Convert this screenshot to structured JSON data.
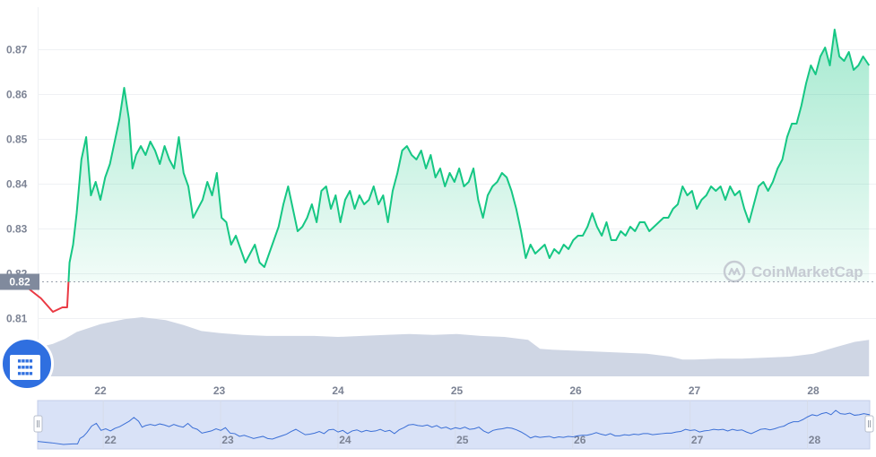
{
  "chart_data": {
    "type": "line",
    "watermark": "CoinMarketCap",
    "ylim": [
      0.8075,
      0.8795
    ],
    "y_ticks": [
      "0.87",
      "0.86",
      "0.85",
      "0.84",
      "0.83",
      "0.82",
      "0.81"
    ],
    "x_ticks": [
      "22",
      "23",
      "24",
      "25",
      "26",
      "27",
      "28"
    ],
    "reference_price": "0.82",
    "reference_value": 0.8182,
    "colors": {
      "up": "#16c784",
      "down": "#ea3943",
      "volume": "#cfd6e4",
      "navigator": "#3b6fd6"
    },
    "series": [
      {
        "x": [
          21.38,
          21.5,
          21.6,
          21.68,
          21.72,
          21.74,
          21.77,
          21.8,
          21.84,
          21.88,
          21.92,
          21.96,
          22.0,
          22.04,
          22.08,
          22.12,
          22.16,
          22.2,
          22.24,
          22.27,
          22.3,
          22.34,
          22.38,
          22.42,
          22.46,
          22.5,
          22.54,
          22.58,
          22.62,
          22.66,
          22.7,
          22.74,
          22.78,
          22.82,
          22.86,
          22.9,
          22.94,
          22.98,
          23.02,
          23.06,
          23.1,
          23.14,
          23.18,
          23.22,
          23.26,
          23.3,
          23.34,
          23.38,
          23.42,
          23.46,
          23.5,
          23.54,
          23.58,
          23.62,
          23.66,
          23.7,
          23.74,
          23.78,
          23.82,
          23.86,
          23.9,
          23.94,
          23.98,
          24.02,
          24.06,
          24.1,
          24.14,
          24.18,
          24.22,
          24.26,
          24.3,
          24.34,
          24.38,
          24.42,
          24.46,
          24.5,
          24.54,
          24.58,
          24.62,
          24.66,
          24.7,
          24.74,
          24.78,
          24.82,
          24.86,
          24.9,
          24.94,
          24.98,
          25.02,
          25.06,
          25.1,
          25.14,
          25.18,
          25.22,
          25.26,
          25.3,
          25.34,
          25.38,
          25.42,
          25.46,
          25.5,
          25.54,
          25.58,
          25.62,
          25.66,
          25.7,
          25.74,
          25.78,
          25.82,
          25.86,
          25.9,
          25.94,
          25.98,
          26.02,
          26.06,
          26.1,
          26.14,
          26.18,
          26.22,
          26.26,
          26.3,
          26.34,
          26.38,
          26.42,
          26.46,
          26.5,
          26.54,
          26.58,
          26.62,
          26.66,
          26.7,
          26.74,
          26.78,
          26.82,
          26.86,
          26.9,
          26.94,
          26.98,
          27.02,
          27.06,
          27.1,
          27.14,
          27.18,
          27.22,
          27.26,
          27.3,
          27.34,
          27.38,
          27.42,
          27.46,
          27.5,
          27.54,
          27.58,
          27.62,
          27.66,
          27.7,
          27.74,
          27.78,
          27.82,
          27.86,
          27.9,
          27.94,
          27.98,
          28.02,
          28.06,
          28.1,
          28.14,
          28.18,
          28.22,
          28.26,
          28.3,
          28.34,
          28.38,
          28.42,
          28.47
        ],
        "values": [
          0.817,
          0.8145,
          0.8115,
          0.8125,
          0.8125,
          0.8225,
          0.8265,
          0.8335,
          0.8455,
          0.8505,
          0.8375,
          0.8405,
          0.8365,
          0.8415,
          0.8445,
          0.8495,
          0.8545,
          0.8615,
          0.8545,
          0.8435,
          0.8465,
          0.8485,
          0.8465,
          0.8495,
          0.8475,
          0.8445,
          0.8485,
          0.8455,
          0.8435,
          0.8505,
          0.8425,
          0.8395,
          0.8325,
          0.8345,
          0.8365,
          0.8405,
          0.8375,
          0.8425,
          0.8325,
          0.8315,
          0.8265,
          0.8285,
          0.8255,
          0.8225,
          0.8245,
          0.8265,
          0.8225,
          0.8215,
          0.8245,
          0.8275,
          0.8305,
          0.8355,
          0.8395,
          0.8345,
          0.8295,
          0.8305,
          0.8325,
          0.8355,
          0.8315,
          0.8385,
          0.8395,
          0.8345,
          0.8375,
          0.8315,
          0.8365,
          0.8385,
          0.8345,
          0.8375,
          0.8355,
          0.8365,
          0.8395,
          0.8355,
          0.8375,
          0.8315,
          0.8385,
          0.8425,
          0.8475,
          0.8485,
          0.8465,
          0.8455,
          0.8475,
          0.8435,
          0.8465,
          0.8415,
          0.8435,
          0.8395,
          0.8425,
          0.8405,
          0.8435,
          0.8395,
          0.8405,
          0.8435,
          0.8365,
          0.8325,
          0.8375,
          0.8395,
          0.8405,
          0.8425,
          0.8415,
          0.8385,
          0.8345,
          0.8295,
          0.8235,
          0.8265,
          0.8245,
          0.8255,
          0.8265,
          0.8235,
          0.8255,
          0.8245,
          0.8265,
          0.8255,
          0.8275,
          0.8285,
          0.8285,
          0.8305,
          0.8335,
          0.8305,
          0.8285,
          0.8315,
          0.8275,
          0.8275,
          0.8295,
          0.8285,
          0.8305,
          0.8295,
          0.8315,
          0.8315,
          0.8295,
          0.8305,
          0.8315,
          0.8325,
          0.8325,
          0.8345,
          0.8355,
          0.8395,
          0.8375,
          0.8385,
          0.8345,
          0.8365,
          0.8375,
          0.8395,
          0.8385,
          0.8395,
          0.8365,
          0.8395,
          0.8375,
          0.8385,
          0.8345,
          0.8315,
          0.8355,
          0.8395,
          0.8405,
          0.8385,
          0.8405,
          0.8435,
          0.8455,
          0.8505,
          0.8535,
          0.8535,
          0.8575,
          0.8625,
          0.8665,
          0.8645,
          0.8685,
          0.8705,
          0.8665,
          0.8745,
          0.8685,
          0.8675,
          0.8695,
          0.8655,
          0.8665,
          0.8685,
          0.8665
        ]
      }
    ],
    "volume": {
      "x": [
        21.38,
        21.5,
        21.6,
        21.7,
        21.8,
        22.0,
        22.2,
        22.35,
        22.55,
        22.7,
        22.85,
        23.0,
        23.2,
        23.4,
        23.6,
        23.8,
        24.0,
        24.2,
        24.4,
        24.6,
        24.8,
        25.0,
        25.2,
        25.4,
        25.6,
        25.7,
        25.8,
        26.0,
        26.2,
        26.4,
        26.6,
        26.8,
        26.9,
        27.0,
        27.2,
        27.4,
        27.6,
        27.8,
        28.0,
        28.2,
        28.35,
        28.47
      ],
      "values": [
        0.28,
        0.3,
        0.33,
        0.38,
        0.45,
        0.53,
        0.58,
        0.6,
        0.57,
        0.52,
        0.46,
        0.44,
        0.42,
        0.41,
        0.41,
        0.41,
        0.4,
        0.41,
        0.42,
        0.43,
        0.42,
        0.43,
        0.41,
        0.4,
        0.37,
        0.28,
        0.27,
        0.26,
        0.25,
        0.24,
        0.23,
        0.2,
        0.17,
        0.17,
        0.18,
        0.18,
        0.19,
        0.2,
        0.23,
        0.3,
        0.35,
        0.37
      ]
    }
  }
}
